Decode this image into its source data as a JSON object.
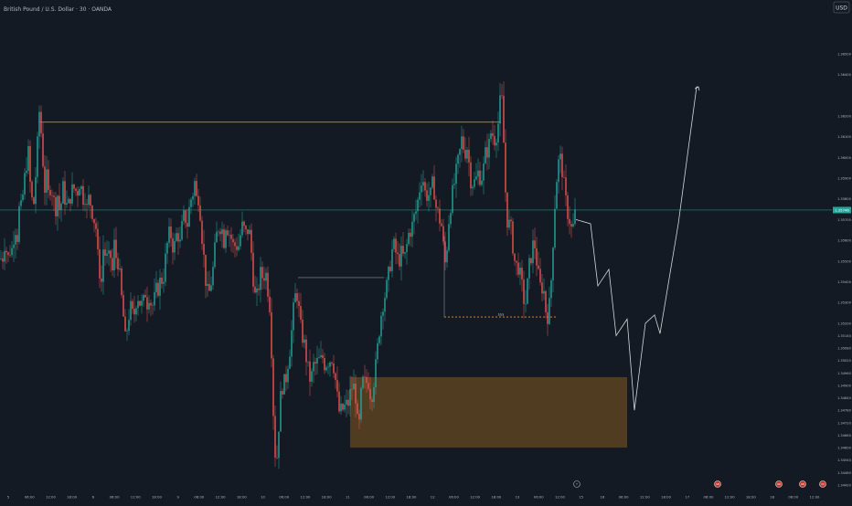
{
  "header": {
    "symbol_title": "British Pound / U.S. Dollar · 30 · OANDA",
    "currency_button": "USD"
  },
  "colors": {
    "background": "#131a24",
    "up": "#26a69a",
    "down": "#ef5350",
    "level_line": "#f7931a",
    "zone_fill": "#5a4321",
    "projection": "#d5d8dc",
    "price_line": "#26a69a",
    "axis_text": "#b2b5be"
  },
  "chart_data": {
    "type": "candlestick",
    "ylim": [
      1.3438,
      1.3668
    ],
    "y_ticks": [
      "1.36500",
      "1.36400",
      "1.36200",
      "1.36100",
      "1.36000",
      "1.35900",
      "1.35800",
      "1.35700",
      "1.35600",
      "1.35500",
      "1.35400",
      "1.35300",
      "1.35200",
      "1.35140",
      "1.35080",
      "1.35020",
      "1.34960",
      "1.34900",
      "1.34840",
      "1.34780",
      "1.34720",
      "1.34660",
      "1.34600",
      "1.34540",
      "1.34480",
      "1.34420"
    ],
    "y_tick_values": [
      1.365,
      1.364,
      1.362,
      1.361,
      1.36,
      1.359,
      1.358,
      1.357,
      1.356,
      1.355,
      1.354,
      1.353,
      1.352,
      1.3514,
      1.3508,
      1.3502,
      1.3496,
      1.349,
      1.3484,
      1.3478,
      1.3472,
      1.3466,
      1.346,
      1.3454,
      1.3448,
      1.3442
    ],
    "current_price": "1.35746",
    "current_price_value": 1.35746,
    "x_ticks": [
      "5",
      "06:00",
      "12:00",
      "18:00",
      "6",
      "06:00",
      "12:00",
      "18:00",
      "9",
      "06:00",
      "12:00",
      "18:00",
      "10",
      "06:00",
      "12:00",
      "18:00",
      "11",
      "06:00",
      "12:00",
      "18:00",
      "12",
      "06:00",
      "12:00",
      "18:00",
      "13",
      "06:00",
      "12:00",
      "15",
      "16",
      "06:00",
      "12:00",
      "18:00",
      "17",
      "06:00",
      "12:00",
      "18:00",
      "18",
      "06:00",
      "12:00"
    ],
    "price_path": [
      [
        0,
        1.3551
      ],
      [
        3,
        1.3552
      ],
      [
        6,
        1.3562
      ],
      [
        8,
        1.3548
      ],
      [
        10,
        1.3555
      ],
      [
        14,
        1.3556
      ],
      [
        16,
        1.3568
      ],
      [
        19,
        1.3562
      ],
      [
        21,
        1.3575
      ],
      [
        23,
        1.3575
      ],
      [
        26,
        1.3585
      ],
      [
        28,
        1.3595
      ],
      [
        31,
        1.3602
      ],
      [
        34,
        1.358
      ],
      [
        37,
        1.3578
      ],
      [
        40,
        1.3598
      ],
      [
        43,
        1.3622
      ],
      [
        45,
        1.3612
      ],
      [
        47,
        1.3598
      ],
      [
        49,
        1.3585
      ],
      [
        51,
        1.359
      ],
      [
        53,
        1.3582
      ],
      [
        56,
        1.3588
      ],
      [
        58,
        1.358
      ],
      [
        61,
        1.3576
      ],
      [
        63,
        1.3582
      ],
      [
        65,
        1.3575
      ],
      [
        67,
        1.3578
      ],
      [
        69,
        1.3585
      ],
      [
        72,
        1.3578
      ],
      [
        74,
        1.3575
      ],
      [
        76,
        1.3579
      ],
      [
        78,
        1.3584
      ],
      [
        80,
        1.3584
      ],
      [
        82,
        1.3586
      ],
      [
        84,
        1.3582
      ],
      [
        86,
        1.3586
      ],
      [
        88,
        1.359
      ],
      [
        90,
        1.358
      ],
      [
        93,
        1.3582
      ],
      [
        95,
        1.3575
      ],
      [
        97,
        1.358
      ],
      [
        99,
        1.3578
      ],
      [
        102,
        1.3572
      ],
      [
        105,
        1.3566
      ],
      [
        107,
        1.3552
      ],
      [
        109,
        1.3545
      ],
      [
        111,
        1.354
      ],
      [
        113,
        1.3556
      ],
      [
        116,
        1.3552
      ],
      [
        118,
        1.355
      ],
      [
        121,
        1.3552
      ],
      [
        123,
        1.3545
      ],
      [
        125,
        1.3558
      ],
      [
        127,
        1.3552
      ],
      [
        129,
        1.355
      ],
      [
        131,
        1.3542
      ],
      [
        133,
        1.3532
      ],
      [
        135,
        1.3523
      ],
      [
        137,
        1.3512
      ],
      [
        140,
        1.352
      ],
      [
        142,
        1.3528
      ],
      [
        144,
        1.3526
      ],
      [
        146,
        1.3522
      ],
      [
        148,
        1.3528
      ],
      [
        150,
        1.3534
      ],
      [
        152,
        1.3532
      ],
      [
        154,
        1.3528
      ],
      [
        157,
        1.353
      ],
      [
        159,
        1.3535
      ],
      [
        161,
        1.353
      ],
      [
        163,
        1.3534
      ],
      [
        165,
        1.353
      ],
      [
        168,
        1.3528
      ],
      [
        170,
        1.3535
      ],
      [
        172,
        1.3536
      ],
      [
        174,
        1.3538
      ],
      [
        176,
        1.3542
      ],
      [
        178,
        1.354
      ],
      [
        180,
        1.3546
      ],
      [
        182,
        1.3556
      ],
      [
        184,
        1.356
      ],
      [
        186,
        1.3565
      ],
      [
        188,
        1.356
      ],
      [
        190,
        1.3555
      ],
      [
        192,
        1.356
      ],
      [
        194,
        1.3565
      ],
      [
        197,
        1.3558
      ],
      [
        200,
        1.357
      ],
      [
        202,
        1.3572
      ],
      [
        205,
        1.3568
      ],
      [
        207,
        1.3575
      ],
      [
        209,
        1.358
      ],
      [
        211,
        1.3583
      ],
      [
        213,
        1.3588
      ],
      [
        215,
        1.358
      ],
      [
        218,
        1.3582
      ],
      [
        220,
        1.3566
      ],
      [
        222,
        1.3558
      ],
      [
        224,
        1.3545
      ],
      [
        226,
        1.3537
      ],
      [
        228,
        1.3532
      ],
      [
        230,
        1.3538
      ],
      [
        232,
        1.3542
      ],
      [
        234,
        1.355
      ],
      [
        236,
        1.356
      ],
      [
        238,
        1.3565
      ],
      [
        240,
        1.3568
      ],
      [
        243,
        1.3565
      ],
      [
        245,
        1.356
      ],
      [
        247,
        1.3568
      ],
      [
        250,
        1.3565
      ],
      [
        252,
        1.3562
      ],
      [
        254,
        1.356
      ],
      [
        256,
        1.3555
      ],
      [
        258,
        1.356
      ],
      [
        260,
        1.3555
      ],
      [
        262,
        1.356
      ],
      [
        264,
        1.3565
      ],
      [
        266,
        1.3568
      ],
      [
        268,
        1.3562
      ],
      [
        270,
        1.3564
      ],
      [
        272,
        1.3566
      ],
      [
        274,
        1.356
      ],
      [
        276,
        1.3548
      ],
      [
        278,
        1.3536
      ],
      [
        280,
        1.353
      ],
      [
        282,
        1.3535
      ],
      [
        284,
        1.3542
      ],
      [
        286,
        1.3545
      ],
      [
        288,
        1.354
      ],
      [
        290,
        1.3547
      ],
      [
        292,
        1.354
      ],
      [
        294,
        1.3533
      ],
      [
        296,
        1.3525
      ],
      [
        298,
        1.349
      ],
      [
        300,
        1.3465
      ],
      [
        302,
        1.345
      ],
      [
        304,
        1.3462
      ],
      [
        306,
        1.348
      ],
      [
        308,
        1.3488
      ],
      [
        310,
        1.3492
      ],
      [
        312,
        1.349
      ],
      [
        314,
        1.3498
      ],
      [
        316,
        1.3505
      ],
      [
        318,
        1.351
      ],
      [
        320,
        1.3522
      ],
      [
        322,
        1.353
      ],
      [
        324,
        1.3536
      ],
      [
        326,
        1.3532
      ],
      [
        328,
        1.352
      ],
      [
        330,
        1.3515
      ],
      [
        332,
        1.3512
      ],
      [
        334,
        1.3507
      ],
      [
        336,
        1.35
      ],
      [
        338,
        1.3495
      ],
      [
        340,
        1.3492
      ],
      [
        342,
        1.3497
      ],
      [
        344,
        1.3502
      ],
      [
        346,
        1.3498
      ],
      [
        348,
        1.3504
      ],
      [
        350,
        1.35
      ],
      [
        352,
        1.3504
      ],
      [
        354,
        1.3503
      ],
      [
        356,
        1.3498
      ],
      [
        358,
        1.3504
      ],
      [
        360,
        1.35
      ],
      [
        362,
        1.3505
      ],
      [
        364,
        1.3502
      ],
      [
        366,
        1.3497
      ],
      [
        368,
        1.3488
      ],
      [
        370,
        1.348
      ],
      [
        372,
        1.3475
      ],
      [
        374,
        1.348
      ],
      [
        376,
        1.3477
      ],
      [
        378,
        1.3482
      ],
      [
        380,
        1.3479
      ],
      [
        382,
        1.3484
      ],
      [
        384,
        1.3488
      ],
      [
        386,
        1.349
      ],
      [
        388,
        1.3488
      ],
      [
        390,
        1.3482
      ],
      [
        392,
        1.3462
      ],
      [
        394,
        1.348
      ],
      [
        396,
        1.349
      ],
      [
        398,
        1.3493
      ],
      [
        400,
        1.3489
      ],
      [
        402,
        1.3494
      ],
      [
        404,
        1.349
      ],
      [
        406,
        1.3483
      ],
      [
        408,
        1.349
      ],
      [
        410,
        1.3495
      ],
      [
        412,
        1.3503
      ],
      [
        414,
        1.3513
      ],
      [
        416,
        1.3521
      ],
      [
        418,
        1.3528
      ],
      [
        420,
        1.3532
      ],
      [
        422,
        1.3535
      ],
      [
        424,
        1.354
      ],
      [
        426,
        1.3546
      ],
      [
        428,
        1.3552
      ],
      [
        430,
        1.3558
      ],
      [
        432,
        1.3556
      ],
      [
        434,
        1.3552
      ],
      [
        436,
        1.355
      ],
      [
        438,
        1.3552
      ],
      [
        440,
        1.3555
      ],
      [
        442,
        1.3549
      ],
      [
        444,
        1.3555
      ],
      [
        446,
        1.356
      ],
      [
        448,
        1.3566
      ],
      [
        450,
        1.3564
      ],
      [
        452,
        1.357
      ],
      [
        454,
        1.3572
      ],
      [
        456,
        1.3576
      ],
      [
        458,
        1.3582
      ],
      [
        460,
        1.3588
      ],
      [
        462,
        1.3592
      ],
      [
        464,
        1.3586
      ],
      [
        466,
        1.358
      ],
      [
        468,
        1.3584
      ],
      [
        470,
        1.358
      ],
      [
        472,
        1.3583
      ],
      [
        474,
        1.359
      ],
      [
        476,
        1.3578
      ],
      [
        478,
        1.3574
      ],
      [
        480,
        1.3572
      ],
      [
        482,
        1.3568
      ],
      [
        484,
        1.3566
      ],
      [
        486,
        1.3548
      ],
      [
        488,
        1.355
      ],
      [
        490,
        1.3565
      ],
      [
        492,
        1.3575
      ],
      [
        494,
        1.358
      ],
      [
        496,
        1.3585
      ],
      [
        498,
        1.359
      ],
      [
        500,
        1.3595
      ],
      [
        502,
        1.36
      ],
      [
        504,
        1.3605
      ],
      [
        506,
        1.3612
      ],
      [
        508,
        1.3598
      ],
      [
        510,
        1.3608
      ],
      [
        512,
        1.3602
      ],
      [
        514,
        1.3593
      ],
      [
        516,
        1.3586
      ],
      [
        518,
        1.359
      ],
      [
        520,
        1.3586
      ],
      [
        522,
        1.3593
      ],
      [
        524,
        1.3592
      ],
      [
        526,
        1.359
      ],
      [
        528,
        1.3592
      ],
      [
        530,
        1.3598
      ],
      [
        532,
        1.3605
      ],
      [
        534,
        1.3602
      ],
      [
        536,
        1.361
      ],
      [
        538,
        1.3614
      ],
      [
        540,
        1.3608
      ],
      [
        542,
        1.361
      ],
      [
        544,
        1.3613
      ],
      [
        546,
        1.362
      ],
      [
        548,
        1.3632
      ],
      [
        550,
        1.3622
      ],
      [
        552,
        1.3592
      ],
      [
        554,
        1.3575
      ],
      [
        556,
        1.3565
      ],
      [
        558,
        1.357
      ],
      [
        560,
        1.356
      ],
      [
        562,
        1.3555
      ],
      [
        564,
        1.3545
      ],
      [
        566,
        1.355
      ],
      [
        568,
        1.3545
      ],
      [
        570,
        1.354
      ],
      [
        572,
        1.3535
      ],
      [
        574,
        1.3528
      ],
      [
        576,
        1.3532
      ],
      [
        578,
        1.3545
      ],
      [
        580,
        1.355
      ],
      [
        582,
        1.3555
      ],
      [
        584,
        1.356
      ],
      [
        586,
        1.3555
      ],
      [
        588,
        1.3545
      ],
      [
        590,
        1.354
      ],
      [
        592,
        1.3535
      ],
      [
        594,
        1.354
      ],
      [
        596,
        1.353
      ],
      [
        598,
        1.3523
      ],
      [
        600,
        1.3525
      ],
      [
        602,
        1.3532
      ],
      [
        604,
        1.355
      ],
      [
        606,
        1.357
      ],
      [
        608,
        1.3585
      ],
      [
        610,
        1.3595
      ],
      [
        612,
        1.36
      ],
      [
        614,
        1.3598
      ],
      [
        616,
        1.359
      ],
      [
        618,
        1.3582
      ],
      [
        620,
        1.3575
      ],
      [
        622,
        1.3572
      ],
      [
        624,
        1.3568
      ],
      [
        626,
        1.3563
      ],
      [
        628,
        1.357
      ],
      [
        630,
        1.3575
      ]
    ],
    "resistance_level": 1.3617,
    "mid_level": 1.3542,
    "support_level": 1.3523,
    "support_label": "$$$",
    "resistance_label": "",
    "demand_zone": [
      1.346,
      1.3494
    ],
    "projection_path": [
      [
        630,
        1.357
      ],
      [
        646,
        1.3568
      ],
      [
        654,
        1.3538
      ],
      [
        666,
        1.3546
      ],
      [
        674,
        1.3514
      ],
      [
        686,
        1.3522
      ],
      [
        694,
        1.3478
      ],
      [
        706,
        1.352
      ],
      [
        716,
        1.3524
      ],
      [
        722,
        1.3515
      ],
      [
        742,
        1.3568
      ],
      [
        762,
        1.3634
      ],
      [
        764,
        1.3634
      ]
    ]
  },
  "bottom_markers": [
    {
      "label": "⚡",
      "kind": "flash"
    },
    {
      "label": "GB",
      "kind": "event"
    },
    {
      "label": "GB",
      "kind": "event"
    },
    {
      "label": "GB",
      "kind": "event"
    },
    {
      "label": "US",
      "kind": "event"
    }
  ]
}
